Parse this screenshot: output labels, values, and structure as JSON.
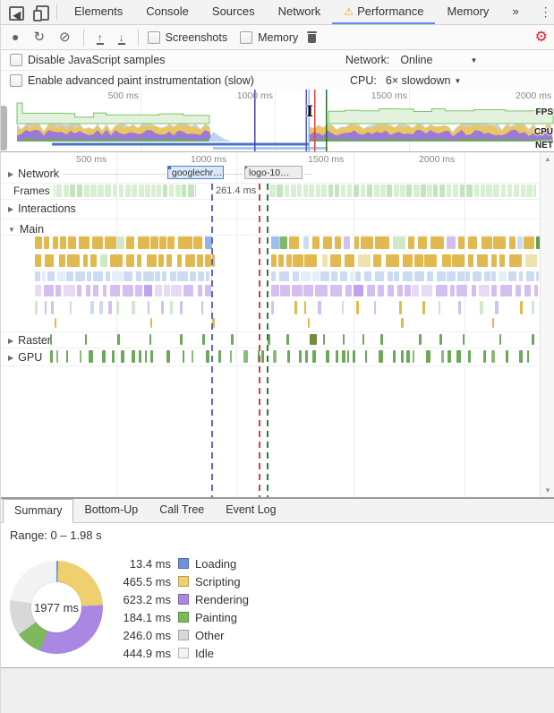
{
  "top_bar": {
    "tabs": [
      {
        "label": "Elements"
      },
      {
        "label": "Console"
      },
      {
        "label": "Sources"
      },
      {
        "label": "Network"
      },
      {
        "label": "Performance",
        "warning": true,
        "active": true
      },
      {
        "label": "Memory"
      }
    ],
    "overflow_label": "»"
  },
  "toolbar": {
    "screenshots_label": "Screenshots",
    "memory_label": "Memory"
  },
  "settings": {
    "disable_js_label": "Disable JavaScript samples",
    "paint_label": "Enable advanced paint instrumentation (slow)",
    "network_label": "Network:",
    "network_value": "Online",
    "cpu_label": "CPU:",
    "cpu_value": "6× slowdown"
  },
  "overview": {
    "ruler_labels": [
      "500 ms",
      "1000 ms",
      "1500 ms",
      "2000 ms"
    ],
    "lane_labels": {
      "fps": "FPS",
      "cpu": "CPU",
      "net": "NET"
    }
  },
  "detail": {
    "ruler_labels": [
      "500 ms",
      "1000 ms",
      "1500 ms",
      "2000 ms"
    ],
    "sections": {
      "network": "Network",
      "frames": "Frames",
      "interactions": "Interactions",
      "main": "Main",
      "raster": "Raster",
      "gpu": "GPU"
    },
    "network_items": [
      "googlechr…",
      "logo-10…"
    ],
    "frame_duration_label": "261.4 ms"
  },
  "bottom": {
    "tabs": [
      {
        "label": "Summary",
        "active": true
      },
      {
        "label": "Bottom-Up"
      },
      {
        "label": "Call Tree"
      },
      {
        "label": "Event Log"
      }
    ],
    "range_label": "Range: 0 – 1.98 s"
  },
  "summary": {
    "center_label": "1977 ms",
    "legend": [
      {
        "value": "13.4 ms",
        "label": "Loading"
      },
      {
        "value": "465.5 ms",
        "label": "Scripting"
      },
      {
        "value": "623.2 ms",
        "label": "Rendering"
      },
      {
        "value": "184.1 ms",
        "label": "Painting"
      },
      {
        "value": "246.0 ms",
        "label": "Other"
      },
      {
        "value": "444.9 ms",
        "label": "Idle"
      }
    ]
  },
  "chart_data": {
    "type": "pie",
    "title": "Summary",
    "categories": [
      "Loading",
      "Scripting",
      "Rendering",
      "Painting",
      "Other",
      "Idle"
    ],
    "values": [
      13.4,
      465.5,
      623.2,
      184.1,
      246.0,
      444.9
    ],
    "unit": "ms",
    "center_label": "1977 ms",
    "total_ms": 1977,
    "range": "Range: 0 – 1.98 s",
    "legend_position": "right"
  },
  "icons": {
    "record": "●",
    "reload": "↻",
    "block": "⊘",
    "up_arrow": "↑",
    "down_arrow": "↓",
    "warning": "⚠",
    "gear": "⚙",
    "menu": "⋮",
    "close": "✕",
    "overflow": "»",
    "dropdown": "▼",
    "expand": "▶",
    "collapse": "▼",
    "scroll_up": "▲",
    "scroll_down": "▼",
    "text_cursor": "I"
  },
  "colors": {
    "accent_blue": "#5a8ee8",
    "gear_red": "#d7262c",
    "warning_orange": "#eda325",
    "fps_line": "#7cc269",
    "fps_fill": "#e3f2dc",
    "cpu_gray": "#cfcfcf",
    "cpu_yellow": "#e9c65f",
    "cpu_purple": "#9a79d8",
    "cpu_green": "#6da85e",
    "net_dark_blue": "#4a72c8",
    "net_light_blue": "#a8c6ef",
    "marker_blue": "#4742b8",
    "marker_red": "#dd4343",
    "marker_green": "#25702a",
    "frames_green": "#d9efd4",
    "flame_yellow": "#e2b94e",
    "flame_blue": "#cbdcf2",
    "flame_purple": "#d3bff0",
    "flame_green": "#cde8cb",
    "raster_green": "#6ca95b",
    "pie_colors": [
      "#6c92dd",
      "#efcf6e",
      "#aa87e3",
      "#7fb95e",
      "#d8d8d8",
      "#f3f3f3"
    ]
  }
}
